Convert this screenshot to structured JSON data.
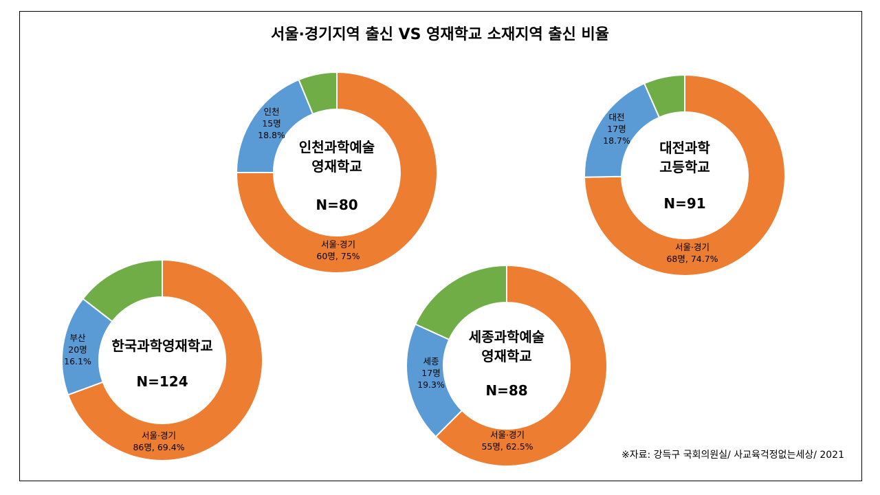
{
  "title": "서울·경기지역 출신 VS 영재학교 소재지역 출신 비율",
  "source": "※자료: 강득구 국회의원실/ 사교육걱정없는세상/ 2021",
  "colors": {
    "seoul": "#ED7D31",
    "local": "#5B9BD5",
    "other": "#70AD47"
  },
  "chart_data": [
    {
      "type": "pie",
      "name_lines": [
        "인천과학예술",
        "영재학교"
      ],
      "n_label": "N=80",
      "slices": [
        {
          "key": "seoul",
          "percent": 75.0,
          "label_lines": [
            "서울·경기",
            "60명, 75%"
          ]
        },
        {
          "key": "local",
          "percent": 18.8,
          "label_lines": [
            "인천",
            "15명",
            "18.8%"
          ]
        },
        {
          "key": "other",
          "percent": 6.2,
          "label_lines": []
        }
      ]
    },
    {
      "type": "pie",
      "name_lines": [
        "대전과학",
        "고등학교"
      ],
      "n_label": "N=91",
      "slices": [
        {
          "key": "seoul",
          "percent": 74.7,
          "label_lines": [
            "서울·경기",
            "68명, 74.7%"
          ]
        },
        {
          "key": "local",
          "percent": 18.7,
          "label_lines": [
            "대전",
            "17명",
            "18.7%"
          ]
        },
        {
          "key": "other",
          "percent": 6.6,
          "label_lines": []
        }
      ]
    },
    {
      "type": "pie",
      "name_lines": [
        "한국과학영재학교"
      ],
      "n_label": "N=124",
      "slices": [
        {
          "key": "seoul",
          "percent": 69.4,
          "label_lines": [
            "서울·경기",
            "86명, 69.4%"
          ]
        },
        {
          "key": "local",
          "percent": 16.1,
          "label_lines": [
            "부산",
            "20명",
            "16.1%"
          ]
        },
        {
          "key": "other",
          "percent": 14.5,
          "label_lines": []
        }
      ]
    },
    {
      "type": "pie",
      "name_lines": [
        "세종과학예술",
        "영재학교"
      ],
      "n_label": "N=88",
      "slices": [
        {
          "key": "seoul",
          "percent": 62.5,
          "label_lines": [
            "서울·경기",
            "55명, 62.5%"
          ]
        },
        {
          "key": "local",
          "percent": 19.3,
          "label_lines": [
            "세종",
            "17명",
            "19.3%"
          ]
        },
        {
          "key": "other",
          "percent": 18.2,
          "label_lines": []
        }
      ]
    }
  ]
}
